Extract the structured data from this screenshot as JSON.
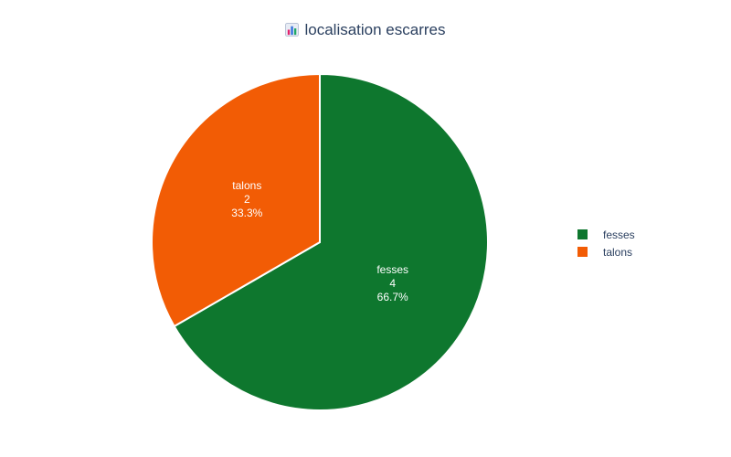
{
  "title": {
    "text": "localisation escarres",
    "icon": "bar-chart-icon"
  },
  "chart_data": {
    "type": "pie",
    "title": "localisation escarres",
    "slices": [
      {
        "label": "fesses",
        "value": 4,
        "percent": "66.7%",
        "color": "#0e772e"
      },
      {
        "label": "talons",
        "value": 2,
        "percent": "33.3%",
        "color": "#f25c05"
      }
    ],
    "legend": "right"
  }
}
